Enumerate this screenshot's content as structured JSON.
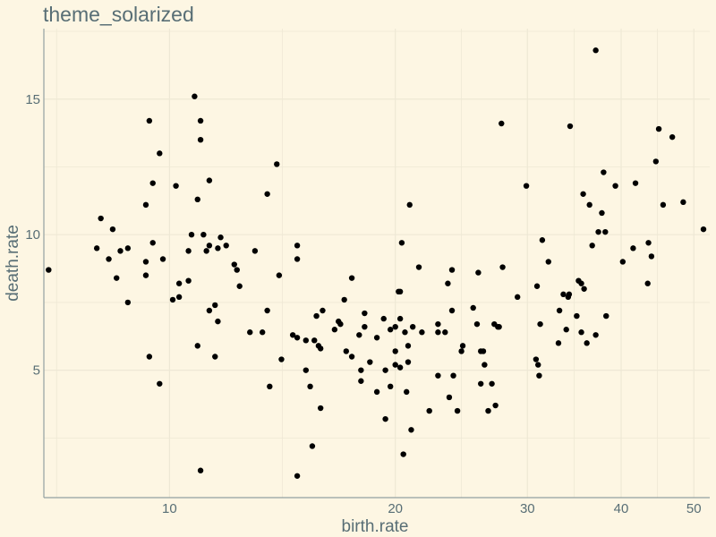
{
  "chart_data": {
    "type": "scatter",
    "title": "theme_solarized",
    "xlabel": "birth.rate",
    "ylabel": "death.rate",
    "xscale": "log",
    "xlim": [
      6.8,
      52.5
    ],
    "ylim": [
      0.3,
      17.6
    ],
    "xticks": [
      10,
      20,
      30,
      40,
      50
    ],
    "yticks": [
      5,
      10,
      15
    ],
    "grid": true,
    "points": [
      [
        6.9,
        8.7
      ],
      [
        8.0,
        9.5
      ],
      [
        8.1,
        10.6
      ],
      [
        8.3,
        9.1
      ],
      [
        8.4,
        10.2
      ],
      [
        8.5,
        8.4
      ],
      [
        8.6,
        9.4
      ],
      [
        8.8,
        9.5
      ],
      [
        8.8,
        7.5
      ],
      [
        9.3,
        11.1
      ],
      [
        9.3,
        9.0
      ],
      [
        9.3,
        8.5
      ],
      [
        9.4,
        14.2
      ],
      [
        9.4,
        5.5
      ],
      [
        9.5,
        11.9
      ],
      [
        9.5,
        9.7
      ],
      [
        9.7,
        13.0
      ],
      [
        9.7,
        4.5
      ],
      [
        9.8,
        9.1
      ],
      [
        10.1,
        7.6
      ],
      [
        10.2,
        11.8
      ],
      [
        10.3,
        8.2
      ],
      [
        10.3,
        7.7
      ],
      [
        10.6,
        8.3
      ],
      [
        10.6,
        9.4
      ],
      [
        10.7,
        10.0
      ],
      [
        10.8,
        15.1
      ],
      [
        10.9,
        11.3
      ],
      [
        10.9,
        5.9
      ],
      [
        11.0,
        14.2
      ],
      [
        11.0,
        13.5
      ],
      [
        11.0,
        1.3
      ],
      [
        11.1,
        10.0
      ],
      [
        11.2,
        9.4
      ],
      [
        11.3,
        12.0
      ],
      [
        11.3,
        9.6
      ],
      [
        11.3,
        7.2
      ],
      [
        11.5,
        7.4
      ],
      [
        11.5,
        5.5
      ],
      [
        11.6,
        9.5
      ],
      [
        11.6,
        6.8
      ],
      [
        11.7,
        9.9
      ],
      [
        11.9,
        9.6
      ],
      [
        12.2,
        8.9
      ],
      [
        12.3,
        8.7
      ],
      [
        12.4,
        8.1
      ],
      [
        12.8,
        6.4
      ],
      [
        13.0,
        9.4
      ],
      [
        13.3,
        6.4
      ],
      [
        13.5,
        11.5
      ],
      [
        13.5,
        7.2
      ],
      [
        13.6,
        4.4
      ],
      [
        13.9,
        12.6
      ],
      [
        14.0,
        8.5
      ],
      [
        14.1,
        5.4
      ],
      [
        14.6,
        6.3
      ],
      [
        14.8,
        1.1
      ],
      [
        14.8,
        9.6
      ],
      [
        14.8,
        9.1
      ],
      [
        14.8,
        6.2
      ],
      [
        15.2,
        6.1
      ],
      [
        15.2,
        5.0
      ],
      [
        15.4,
        4.4
      ],
      [
        15.5,
        2.2
      ],
      [
        15.6,
        6.1
      ],
      [
        15.7,
        7.0
      ],
      [
        15.8,
        5.9
      ],
      [
        15.9,
        5.8
      ],
      [
        15.9,
        3.6
      ],
      [
        16.0,
        7.2
      ],
      [
        16.6,
        6.5
      ],
      [
        16.8,
        6.8
      ],
      [
        16.9,
        6.7
      ],
      [
        17.1,
        7.6
      ],
      [
        17.2,
        5.7
      ],
      [
        17.5,
        8.4
      ],
      [
        17.5,
        5.5
      ],
      [
        17.9,
        6.3
      ],
      [
        18.0,
        5.0
      ],
      [
        18.0,
        4.6
      ],
      [
        18.2,
        6.6
      ],
      [
        18.2,
        7.1
      ],
      [
        18.5,
        5.3
      ],
      [
        18.9,
        4.2
      ],
      [
        18.9,
        6.2
      ],
      [
        19.3,
        6.9
      ],
      [
        19.4,
        5.0
      ],
      [
        19.4,
        3.2
      ],
      [
        19.7,
        6.5
      ],
      [
        19.7,
        4.4
      ],
      [
        20.0,
        6.6
      ],
      [
        20.0,
        5.7
      ],
      [
        20.0,
        5.2
      ],
      [
        20.2,
        7.9
      ],
      [
        20.3,
        7.9
      ],
      [
        20.3,
        6.9
      ],
      [
        20.3,
        5.1
      ],
      [
        20.4,
        9.7
      ],
      [
        20.5,
        1.9
      ],
      [
        20.6,
        6.4
      ],
      [
        20.7,
        4.2
      ],
      [
        20.8,
        5.9
      ],
      [
        20.8,
        5.3
      ],
      [
        20.9,
        11.1
      ],
      [
        21.0,
        2.8
      ],
      [
        21.1,
        6.6
      ],
      [
        21.5,
        8.8
      ],
      [
        21.7,
        6.4
      ],
      [
        22.2,
        3.5
      ],
      [
        22.8,
        4.8
      ],
      [
        22.8,
        6.7
      ],
      [
        22.8,
        6.4
      ],
      [
        23.3,
        6.4
      ],
      [
        23.5,
        8.2
      ],
      [
        23.6,
        4.0
      ],
      [
        23.8,
        8.7
      ],
      [
        23.8,
        7.2
      ],
      [
        23.9,
        4.8
      ],
      [
        24.2,
        3.5
      ],
      [
        24.5,
        5.7
      ],
      [
        24.6,
        5.9
      ],
      [
        25.4,
        7.3
      ],
      [
        25.7,
        6.7
      ],
      [
        25.8,
        8.6
      ],
      [
        26.0,
        5.7
      ],
      [
        26.0,
        4.5
      ],
      [
        26.2,
        5.7
      ],
      [
        26.3,
        5.2
      ],
      [
        26.6,
        3.5
      ],
      [
        26.9,
        4.5
      ],
      [
        27.1,
        6.7
      ],
      [
        27.2,
        3.7
      ],
      [
        27.4,
        6.6
      ],
      [
        27.5,
        6.6
      ],
      [
        27.7,
        14.1
      ],
      [
        27.8,
        8.8
      ],
      [
        29.1,
        7.7
      ],
      [
        29.9,
        11.8
      ],
      [
        30.8,
        5.4
      ],
      [
        30.9,
        8.1
      ],
      [
        31.0,
        5.2
      ],
      [
        31.1,
        4.8
      ],
      [
        31.2,
        6.7
      ],
      [
        31.4,
        9.8
      ],
      [
        32.0,
        9.0
      ],
      [
        33.0,
        6.0
      ],
      [
        33.1,
        7.2
      ],
      [
        33.5,
        7.8
      ],
      [
        33.8,
        6.5
      ],
      [
        34.0,
        7.7
      ],
      [
        34.1,
        7.8
      ],
      [
        34.2,
        14.0
      ],
      [
        34.9,
        7.0
      ],
      [
        35.1,
        8.3
      ],
      [
        35.4,
        6.4
      ],
      [
        35.4,
        8.2
      ],
      [
        35.6,
        11.5
      ],
      [
        35.7,
        8.0
      ],
      [
        36.0,
        6.0
      ],
      [
        36.3,
        11.1
      ],
      [
        36.6,
        9.6
      ],
      [
        37.0,
        16.8
      ],
      [
        37.0,
        6.3
      ],
      [
        37.3,
        10.1
      ],
      [
        37.7,
        10.8
      ],
      [
        37.9,
        12.3
      ],
      [
        38.1,
        10.1
      ],
      [
        38.2,
        7.0
      ],
      [
        39.3,
        11.8
      ],
      [
        40.2,
        9.0
      ],
      [
        41.5,
        9.5
      ],
      [
        41.8,
        11.9
      ],
      [
        43.4,
        8.2
      ],
      [
        43.5,
        9.7
      ],
      [
        43.9,
        9.2
      ],
      [
        44.5,
        12.7
      ],
      [
        44.9,
        13.9
      ],
      [
        45.5,
        11.1
      ],
      [
        46.8,
        13.6
      ],
      [
        48.4,
        11.2
      ],
      [
        51.5,
        10.2
      ]
    ]
  },
  "theme": {
    "background": "#fdf6e3",
    "grid": "#eee8d5",
    "axis_line": "#93a1a1",
    "text": "#586e75",
    "point": "#000000"
  }
}
